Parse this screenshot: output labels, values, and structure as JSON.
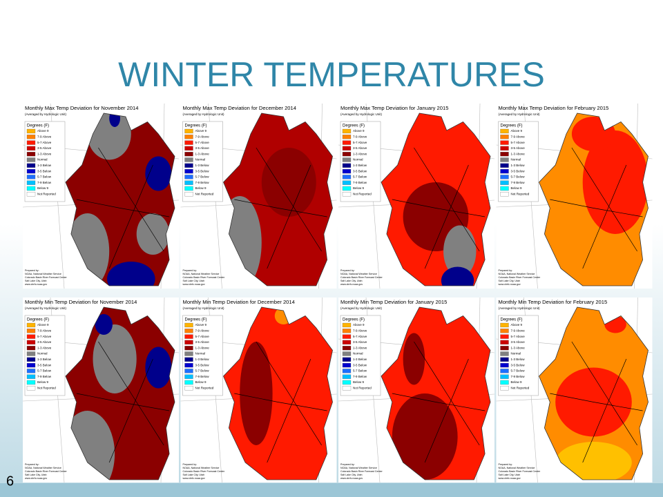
{
  "title": "WINTER TEMPERATURES",
  "page_number": "6",
  "panel_subtitle": "(Averaged by Hydrologic Unit)",
  "legend": {
    "title": "Degrees (F)",
    "items": [
      "Above 9",
      "7-9 Above",
      "5-7 Above",
      "3-5 Above",
      "1-3 Above",
      "Normal",
      "1-3 Below",
      "3-5 Below",
      "5-7 Below",
      "7-9 Below",
      "Below 9",
      "Not Reported"
    ]
  },
  "footer": [
    "Prepared by:",
    "NOAA, National Weather Service",
    "Colorado Basin River Forecast Center",
    "Salt Lake City, Utah",
    "www.cbrfc.noaa.gov"
  ],
  "panels": [
    {
      "title": "Monthly Max Temp Deviation for November 2014"
    },
    {
      "title": "Monthly Max Temp Deviation for December 2014"
    },
    {
      "title": "Monthly Max Temp Deviation for January 2015"
    },
    {
      "title": "Monthly Max Temp Deviation for February 2015"
    },
    {
      "title": "Monthly Min Temp Deviation for November 2014"
    },
    {
      "title": "Monthly Min Temp Deviation for December 2014"
    },
    {
      "title": "Monthly Min Temp Deviation for January 2015"
    },
    {
      "title": "Monthly Min Temp Deviation for February 2015"
    }
  ]
}
